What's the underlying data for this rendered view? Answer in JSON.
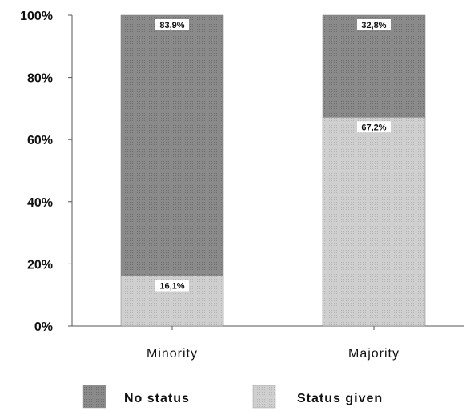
{
  "chart_data": {
    "type": "bar",
    "stacked": true,
    "categories": [
      "Minority",
      "Majority"
    ],
    "series": [
      {
        "name": "Status given",
        "values": [
          16.1,
          67.2
        ],
        "labels": [
          "16,1%",
          "67,2%"
        ],
        "color": "#c8c8c8"
      },
      {
        "name": "No status",
        "values": [
          83.9,
          32.8
        ],
        "labels": [
          "83,9%",
          "32,8%"
        ],
        "color": "#8a8a8a"
      }
    ],
    "ylim": [
      0,
      100
    ],
    "yticks": [
      "0%",
      "20%",
      "40%",
      "60%",
      "80%",
      "100%"
    ],
    "grid": false,
    "legend_position": "bottom",
    "legend": [
      "No status",
      "Status given"
    ]
  }
}
